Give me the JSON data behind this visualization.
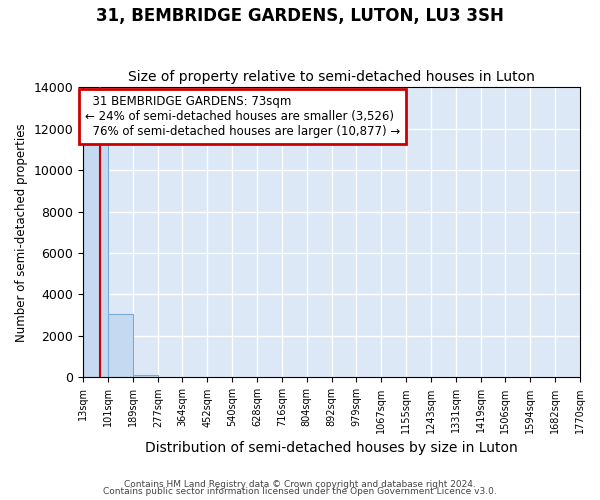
{
  "title": "31, BEMBRIDGE GARDENS, LUTON, LU3 3SH",
  "subtitle": "Size of property relative to semi-detached houses in Luton",
  "xlabel": "Distribution of semi-detached houses by size in Luton",
  "ylabel": "Number of semi-detached properties",
  "property_size": 73,
  "property_label": "31 BEMBRIDGE GARDENS: 73sqm",
  "pct_smaller": 24,
  "pct_larger": 76,
  "n_smaller": 3526,
  "n_larger": 10877,
  "bar_edges": [
    13,
    101,
    189,
    277,
    364,
    452,
    540,
    628,
    716,
    804,
    892,
    979,
    1067,
    1155,
    1243,
    1331,
    1419,
    1506,
    1594,
    1682,
    1770
  ],
  "bar_heights": [
    11400,
    3050,
    130,
    0,
    0,
    0,
    0,
    0,
    0,
    0,
    0,
    0,
    0,
    0,
    0,
    0,
    0,
    0,
    0,
    0
  ],
  "bar_color": "#c5d9f0",
  "bar_edgecolor": "#7aabd4",
  "ylim": [
    0,
    14000
  ],
  "yticks": [
    0,
    2000,
    4000,
    6000,
    8000,
    10000,
    12000,
    14000
  ],
  "red_line_color": "#cc0000",
  "annotation_box_color": "#cc0000",
  "footer_line1": "Contains HM Land Registry data © Crown copyright and database right 2024.",
  "footer_line2": "Contains public sector information licensed under the Open Government Licence v3.0.",
  "background_color": "#dce8f5",
  "grid_color": "#ffffff",
  "title_fontsize": 12,
  "subtitle_fontsize": 10,
  "tick_label_fontsize": 7,
  "ylabel_fontsize": 8.5,
  "xlabel_fontsize": 10
}
